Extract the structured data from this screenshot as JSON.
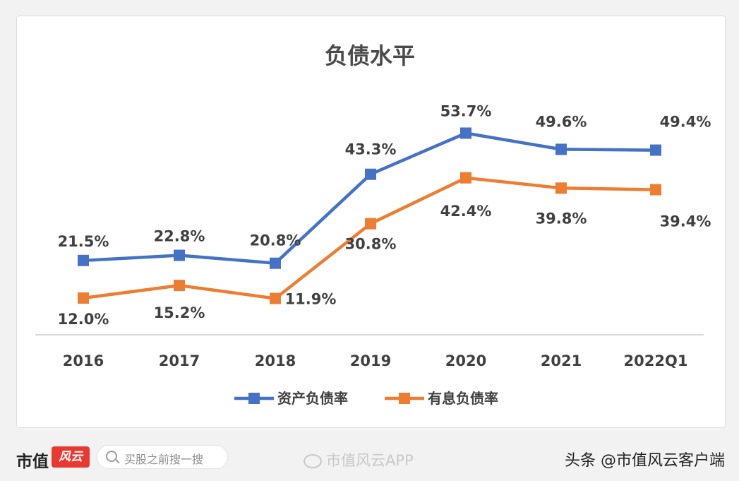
{
  "chart_data": {
    "type": "line",
    "title": "负债水平",
    "categories": [
      "2016",
      "2017",
      "2018",
      "2019",
      "2020",
      "2021",
      "2022Q1"
    ],
    "series": [
      {
        "name": "资产负债率",
        "color": "#4472c4",
        "values": [
          21.5,
          22.8,
          20.8,
          43.3,
          53.7,
          49.6,
          49.4
        ],
        "labels": [
          "21.5%",
          "22.8%",
          "20.8%",
          "43.3%",
          "53.7%",
          "49.6%",
          "49.4%"
        ]
      },
      {
        "name": "有息负债率",
        "color": "#ed7d31",
        "values": [
          12.0,
          15.2,
          11.9,
          30.8,
          42.4,
          39.8,
          39.4
        ],
        "labels": [
          "12.0%",
          "15.2%",
          "11.9%",
          "30.8%",
          "42.4%",
          "39.8%",
          "39.4%"
        ]
      }
    ],
    "grid": false,
    "legend": "bottom",
    "marker": "square"
  },
  "footer": {
    "brand": "市值",
    "brand_logo_text": "风云",
    "search_placeholder": "买股之前搜一搜",
    "weibo_text": "市值风云APP",
    "toutiao_text": "头条 @市值风云客户端"
  }
}
